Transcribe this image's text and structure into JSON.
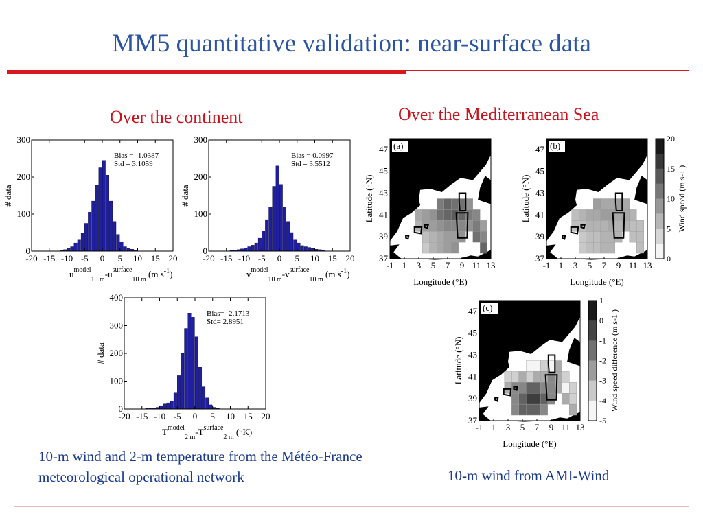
{
  "slide": {
    "title": "MM5 quantitative validation: near-surface data",
    "left_heading": "Over the continent",
    "right_heading": "Over the Mediterranean Sea",
    "left_caption": "10-m wind and 2-m temperature from the Météo-France meteorological operational network",
    "right_caption": "10-m wind from AMI-Wind"
  },
  "colors": {
    "title": "#2b55a0",
    "heading": "#c8121c",
    "caption": "#1a3a8c",
    "bars": "#1f1fa0"
  },
  "chart_data": [
    {
      "type": "bar",
      "id": "u10",
      "ylabel": "# data",
      "xlabel_parts": {
        "var": "u",
        "sup1": "model",
        "sub1": "10 m",
        "sup2": "surface",
        "sub2": "10 m",
        "unit": "(m s",
        "unit_sup": "-1",
        "unit_end": ")"
      },
      "xlim": [
        -20,
        20
      ],
      "ylim": [
        0,
        300
      ],
      "xticks": [
        -20,
        -15,
        -10,
        -5,
        0,
        5,
        10,
        15,
        20
      ],
      "yticks": [
        0,
        100,
        200,
        300
      ],
      "stats": [
        "Bias = -1.0387",
        "Std = 3.1059"
      ],
      "bin_width": 1,
      "bin_starts": [
        -12,
        -11,
        -10,
        -9,
        -8,
        -7,
        -6,
        -5,
        -4,
        -3,
        -2,
        -1,
        0,
        1,
        2,
        3,
        4,
        5,
        6,
        7,
        8,
        9
      ],
      "values": [
        2,
        4,
        8,
        12,
        22,
        30,
        48,
        75,
        105,
        135,
        178,
        225,
        245,
        205,
        135,
        80,
        45,
        25,
        12,
        8,
        5,
        3
      ]
    },
    {
      "type": "bar",
      "id": "v10",
      "ylabel": "# data",
      "xlabel_parts": {
        "var": "v",
        "sup1": "model",
        "sub1": "10 m",
        "sup2": "surface",
        "sub2": "10 m",
        "unit": "(m s",
        "unit_sup": "-1",
        "unit_end": ")"
      },
      "xlim": [
        -20,
        20
      ],
      "ylim": [
        0,
        300
      ],
      "xticks": [
        -20,
        -15,
        -10,
        -5,
        0,
        5,
        10,
        15,
        20
      ],
      "yticks": [
        0,
        100,
        200,
        300
      ],
      "stats": [
        "Bias = 0.0997",
        "Std = 3.5512"
      ],
      "bin_width": 1,
      "bin_starts": [
        -14,
        -13,
        -12,
        -11,
        -10,
        -9,
        -8,
        -7,
        -6,
        -5,
        -4,
        -3,
        -2,
        -1,
        0,
        1,
        2,
        3,
        4,
        5,
        6,
        7,
        8,
        9,
        10,
        11,
        12
      ],
      "values": [
        2,
        3,
        4,
        6,
        8,
        12,
        16,
        22,
        35,
        55,
        85,
        120,
        175,
        230,
        180,
        120,
        80,
        50,
        30,
        22,
        15,
        12,
        10,
        7,
        5,
        4,
        2
      ]
    },
    {
      "type": "bar",
      "id": "t2",
      "ylabel": "# data",
      "xlabel_parts": {
        "var": "T",
        "sup1": "model",
        "sub1": "2 m",
        "sup2": "surface",
        "sub2": "2 m",
        "unit": "(°K)",
        "unit_sup": "",
        "unit_end": ""
      },
      "xlim": [
        -20,
        20
      ],
      "ylim": [
        0,
        400
      ],
      "xticks": [
        -20,
        -15,
        -10,
        -5,
        0,
        5,
        10,
        15,
        20
      ],
      "yticks": [
        0,
        100,
        200,
        300,
        400
      ],
      "stats": [
        "Bias= -2.1713",
        "Std= 2.8951"
      ],
      "bin_width": 1,
      "bin_starts": [
        -14,
        -13,
        -12,
        -11,
        -10,
        -9,
        -8,
        -7,
        -6,
        -5,
        -4,
        -3,
        -2,
        -1,
        0,
        1,
        2,
        3,
        4,
        5,
        6
      ],
      "values": [
        2,
        3,
        4,
        6,
        12,
        18,
        22,
        28,
        60,
        120,
        200,
        290,
        345,
        330,
        260,
        150,
        80,
        40,
        15,
        6,
        2
      ]
    },
    {
      "type": "heatmap",
      "id": "map-a",
      "panel": "(a)",
      "xlabel": "Longitude (°E)",
      "ylabel": "Latitude (°N)",
      "xticks": [
        "-1",
        "1",
        "3",
        "5",
        "7",
        "9",
        "11",
        "13"
      ],
      "yticks": [
        "47",
        "45",
        "43",
        "41",
        "39",
        "37"
      ],
      "colorbar": {
        "label": "Wind speed (m s-1 )",
        "ticks": [
          "20",
          "15",
          "10",
          "5",
          "0"
        ]
      },
      "x": [
        3,
        4,
        5,
        6,
        7,
        8,
        9,
        10,
        11,
        12
      ],
      "y": [
        42,
        41,
        40,
        39,
        38
      ],
      "values": [
        [
          null,
          null,
          null,
          11,
          13,
          12,
          12,
          9,
          null,
          null
        ],
        [
          7,
          8,
          9,
          12,
          13,
          14,
          13,
          11,
          10,
          null
        ],
        [
          6,
          8,
          8,
          9,
          10,
          10,
          10,
          9,
          11,
          8
        ],
        [
          null,
          5,
          6,
          7,
          8,
          8,
          9,
          null,
          12,
          10
        ],
        [
          null,
          4,
          6,
          7,
          8,
          9,
          null,
          null,
          null,
          13
        ]
      ]
    },
    {
      "type": "heatmap",
      "id": "map-b",
      "panel": "(b)",
      "xlabel": "Longitude (°E)",
      "ylabel": "Latitude (°N)",
      "xticks": [
        "-1",
        "1",
        "3",
        "5",
        "7",
        "9",
        "11",
        "13"
      ],
      "yticks": [
        "47",
        "45",
        "43",
        "41",
        "39",
        "37"
      ],
      "colorbar": {
        "label": "Wind speed (m s-1 )",
        "ticks": [
          "20",
          "15",
          "10",
          "5",
          "0"
        ]
      },
      "x": [
        3,
        4,
        5,
        6,
        7,
        8,
        9,
        10,
        11,
        12
      ],
      "y": [
        42,
        41,
        40,
        39,
        38
      ],
      "values": [
        [
          null,
          null,
          null,
          8,
          7,
          7,
          8,
          7,
          null,
          null
        ],
        [
          5,
          6,
          7,
          7,
          8,
          8,
          7,
          7,
          6,
          null
        ],
        [
          5,
          5,
          6,
          6,
          6,
          7,
          6,
          6,
          5,
          5
        ],
        [
          null,
          4,
          5,
          5,
          6,
          6,
          6,
          null,
          5,
          5
        ],
        [
          null,
          4,
          5,
          5,
          6,
          6,
          null,
          null,
          null,
          5
        ]
      ]
    },
    {
      "type": "heatmap",
      "id": "map-c",
      "panel": "(c)",
      "xlabel": "Longitude (°E)",
      "ylabel": "Latitude (°N)",
      "xticks": [
        "-1",
        "1",
        "3",
        "5",
        "7",
        "9",
        "11",
        "13"
      ],
      "yticks": [
        "47",
        "45",
        "43",
        "41",
        "39",
        "37"
      ],
      "colorbar": {
        "label": "Wind speed difference (m s-1 )",
        "ticks": [
          "1",
          "0",
          "-1",
          "-2",
          "-3",
          "-4",
          "-5"
        ]
      },
      "x": [
        3,
        4,
        5,
        6,
        7,
        8,
        9,
        10,
        11,
        12
      ],
      "y": [
        42,
        41,
        40,
        39,
        38
      ],
      "values": [
        [
          null,
          null,
          null,
          -5,
          -5,
          -4,
          -5,
          -3,
          null,
          null
        ],
        [
          -4,
          -4,
          -3,
          -4,
          -3,
          -3,
          -2,
          -3,
          -4,
          null
        ],
        [
          -3,
          -2,
          -2,
          -1,
          -1,
          -2,
          -2,
          -3,
          -5,
          -4
        ],
        [
          null,
          -2,
          -1,
          0,
          0,
          -1,
          -2,
          null,
          -3,
          -4
        ],
        [
          null,
          -2,
          -1,
          -1,
          -1,
          -2,
          null,
          null,
          null,
          -3
        ]
      ]
    }
  ]
}
